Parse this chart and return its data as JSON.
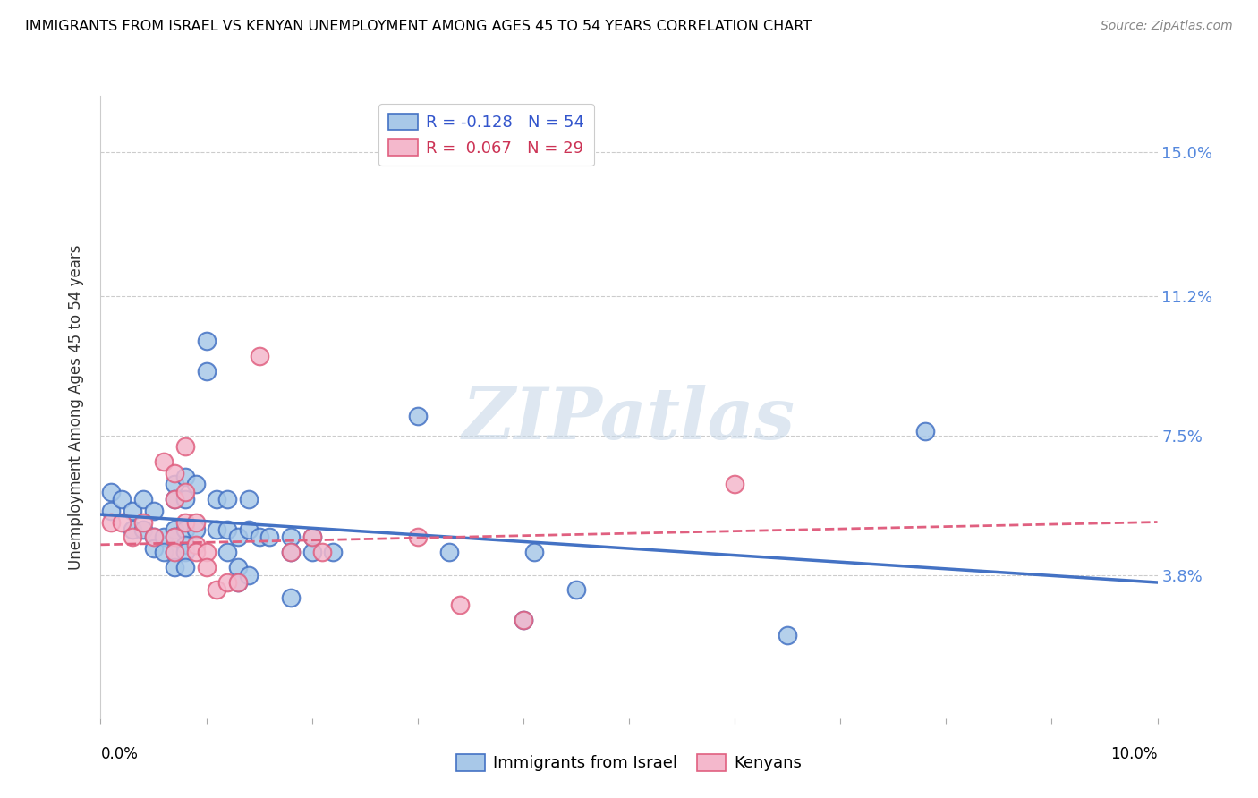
{
  "title": "IMMIGRANTS FROM ISRAEL VS KENYAN UNEMPLOYMENT AMONG AGES 45 TO 54 YEARS CORRELATION CHART",
  "source": "Source: ZipAtlas.com",
  "ylabel": "Unemployment Among Ages 45 to 54 years",
  "ytick_labels": [
    "15.0%",
    "11.2%",
    "7.5%",
    "3.8%"
  ],
  "ytick_values": [
    0.15,
    0.112,
    0.075,
    0.038
  ],
  "xrange": [
    0.0,
    0.1
  ],
  "yrange": [
    0.0,
    0.165
  ],
  "legend1_text": "R = -0.128   N = 54",
  "legend2_text": "R =  0.067   N = 29",
  "scatter_blue_color": "#a8c8e8",
  "scatter_pink_color": "#f4b8cc",
  "line_blue_color": "#4472c4",
  "line_pink_color": "#e06080",
  "watermark": "ZIPatlas",
  "blue_points": [
    [
      0.001,
      0.06
    ],
    [
      0.001,
      0.055
    ],
    [
      0.002,
      0.058
    ],
    [
      0.003,
      0.055
    ],
    [
      0.003,
      0.05
    ],
    [
      0.004,
      0.058
    ],
    [
      0.004,
      0.05
    ],
    [
      0.005,
      0.055
    ],
    [
      0.005,
      0.048
    ],
    [
      0.005,
      0.045
    ],
    [
      0.006,
      0.048
    ],
    [
      0.006,
      0.044
    ],
    [
      0.007,
      0.062
    ],
    [
      0.007,
      0.058
    ],
    [
      0.007,
      0.05
    ],
    [
      0.007,
      0.048
    ],
    [
      0.007,
      0.044
    ],
    [
      0.007,
      0.04
    ],
    [
      0.008,
      0.064
    ],
    [
      0.008,
      0.058
    ],
    [
      0.008,
      0.05
    ],
    [
      0.008,
      0.046
    ],
    [
      0.008,
      0.044
    ],
    [
      0.008,
      0.04
    ],
    [
      0.009,
      0.062
    ],
    [
      0.009,
      0.05
    ],
    [
      0.01,
      0.1
    ],
    [
      0.01,
      0.092
    ],
    [
      0.011,
      0.058
    ],
    [
      0.011,
      0.05
    ],
    [
      0.012,
      0.058
    ],
    [
      0.012,
      0.05
    ],
    [
      0.012,
      0.044
    ],
    [
      0.013,
      0.048
    ],
    [
      0.013,
      0.04
    ],
    [
      0.013,
      0.036
    ],
    [
      0.014,
      0.058
    ],
    [
      0.014,
      0.05
    ],
    [
      0.014,
      0.038
    ],
    [
      0.015,
      0.048
    ],
    [
      0.016,
      0.048
    ],
    [
      0.018,
      0.048
    ],
    [
      0.018,
      0.044
    ],
    [
      0.018,
      0.032
    ],
    [
      0.02,
      0.048
    ],
    [
      0.02,
      0.044
    ],
    [
      0.022,
      0.044
    ],
    [
      0.03,
      0.08
    ],
    [
      0.033,
      0.044
    ],
    [
      0.04,
      0.026
    ],
    [
      0.041,
      0.044
    ],
    [
      0.045,
      0.034
    ],
    [
      0.065,
      0.022
    ],
    [
      0.078,
      0.076
    ]
  ],
  "pink_points": [
    [
      0.001,
      0.052
    ],
    [
      0.002,
      0.052
    ],
    [
      0.003,
      0.048
    ],
    [
      0.004,
      0.052
    ],
    [
      0.005,
      0.048
    ],
    [
      0.006,
      0.068
    ],
    [
      0.007,
      0.065
    ],
    [
      0.007,
      0.058
    ],
    [
      0.007,
      0.048
    ],
    [
      0.007,
      0.044
    ],
    [
      0.008,
      0.072
    ],
    [
      0.008,
      0.06
    ],
    [
      0.008,
      0.052
    ],
    [
      0.009,
      0.052
    ],
    [
      0.009,
      0.046
    ],
    [
      0.009,
      0.044
    ],
    [
      0.01,
      0.044
    ],
    [
      0.01,
      0.04
    ],
    [
      0.011,
      0.034
    ],
    [
      0.012,
      0.036
    ],
    [
      0.013,
      0.036
    ],
    [
      0.015,
      0.096
    ],
    [
      0.018,
      0.044
    ],
    [
      0.02,
      0.048
    ],
    [
      0.021,
      0.044
    ],
    [
      0.03,
      0.048
    ],
    [
      0.034,
      0.03
    ],
    [
      0.04,
      0.026
    ],
    [
      0.06,
      0.062
    ]
  ],
  "blue_line_x": [
    0.0,
    0.1
  ],
  "blue_line_y": [
    0.054,
    0.036
  ],
  "pink_line_x": [
    0.0,
    0.1
  ],
  "pink_line_y": [
    0.046,
    0.052
  ]
}
